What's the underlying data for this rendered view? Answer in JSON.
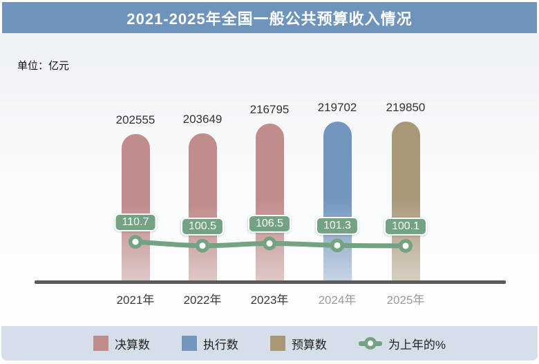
{
  "page": {
    "title": "2021-2025年全国一般公共预算收入情况",
    "unit_label": "单位：亿元"
  },
  "colors": {
    "header_bg": "#6f94bc",
    "title_text": "#ffffff",
    "bg_top": "#eef1f5",
    "bg_bottom": "#fdfdfe",
    "final_account": "#c18c8c",
    "final_account_fade": "#ddc8c6",
    "execution": "#7296bd",
    "execution_fade": "#c6d3e2",
    "budget": "#a89878",
    "budget_fade": "#d6cec0",
    "line_green": "#74a383",
    "axis": "#595959",
    "legend_band_bg": "#d5dee9",
    "value_text": "#333333",
    "xlabel_dark": "#3a3a3a",
    "xlabel_muted": "#9b9b9b",
    "legend_text": "#222222"
  },
  "chart_data": {
    "type": "bar",
    "combo": "bar+line",
    "title": "2021-2025年全国一般公共预算收入情况",
    "ylabel": "单位：亿元",
    "xlabel": "",
    "legend_position": "bottom",
    "grid": false,
    "categories": [
      "2021年",
      "2022年",
      "2023年",
      "2024年",
      "2025年"
    ],
    "bar_values": [
      202555,
      203649,
      216795,
      219702,
      219850
    ],
    "bar_color_keys": [
      "final_account",
      "final_account",
      "final_account",
      "execution",
      "budget"
    ],
    "muted_categories": [
      "2024年",
      "2025年"
    ],
    "series": [
      {
        "name": "决算数",
        "type": "bar",
        "color_key": "final_account",
        "values": [
          202555,
          203649,
          216795,
          null,
          null
        ]
      },
      {
        "name": "执行数",
        "type": "bar",
        "color_key": "execution",
        "values": [
          null,
          null,
          null,
          219702,
          null
        ]
      },
      {
        "name": "预算数",
        "type": "bar",
        "color_key": "budget",
        "values": [
          null,
          null,
          null,
          null,
          219850
        ]
      },
      {
        "name": "为上年的%",
        "type": "line",
        "color_key": "line_green",
        "values": [
          110.7,
          100.5,
          106.5,
          101.3,
          100.1
        ]
      }
    ]
  },
  "legend": {
    "items": [
      {
        "key": "final-account",
        "label": "决算数",
        "icon": "swatch",
        "color_key": "final_account"
      },
      {
        "key": "execution",
        "label": "执行数",
        "icon": "swatch",
        "color_key": "execution"
      },
      {
        "key": "budget",
        "label": "预算数",
        "icon": "swatch",
        "color_key": "budget"
      },
      {
        "key": "yoy-line",
        "label": "为上年的%",
        "icon": "line-marker",
        "color_key": "line_green"
      }
    ]
  }
}
